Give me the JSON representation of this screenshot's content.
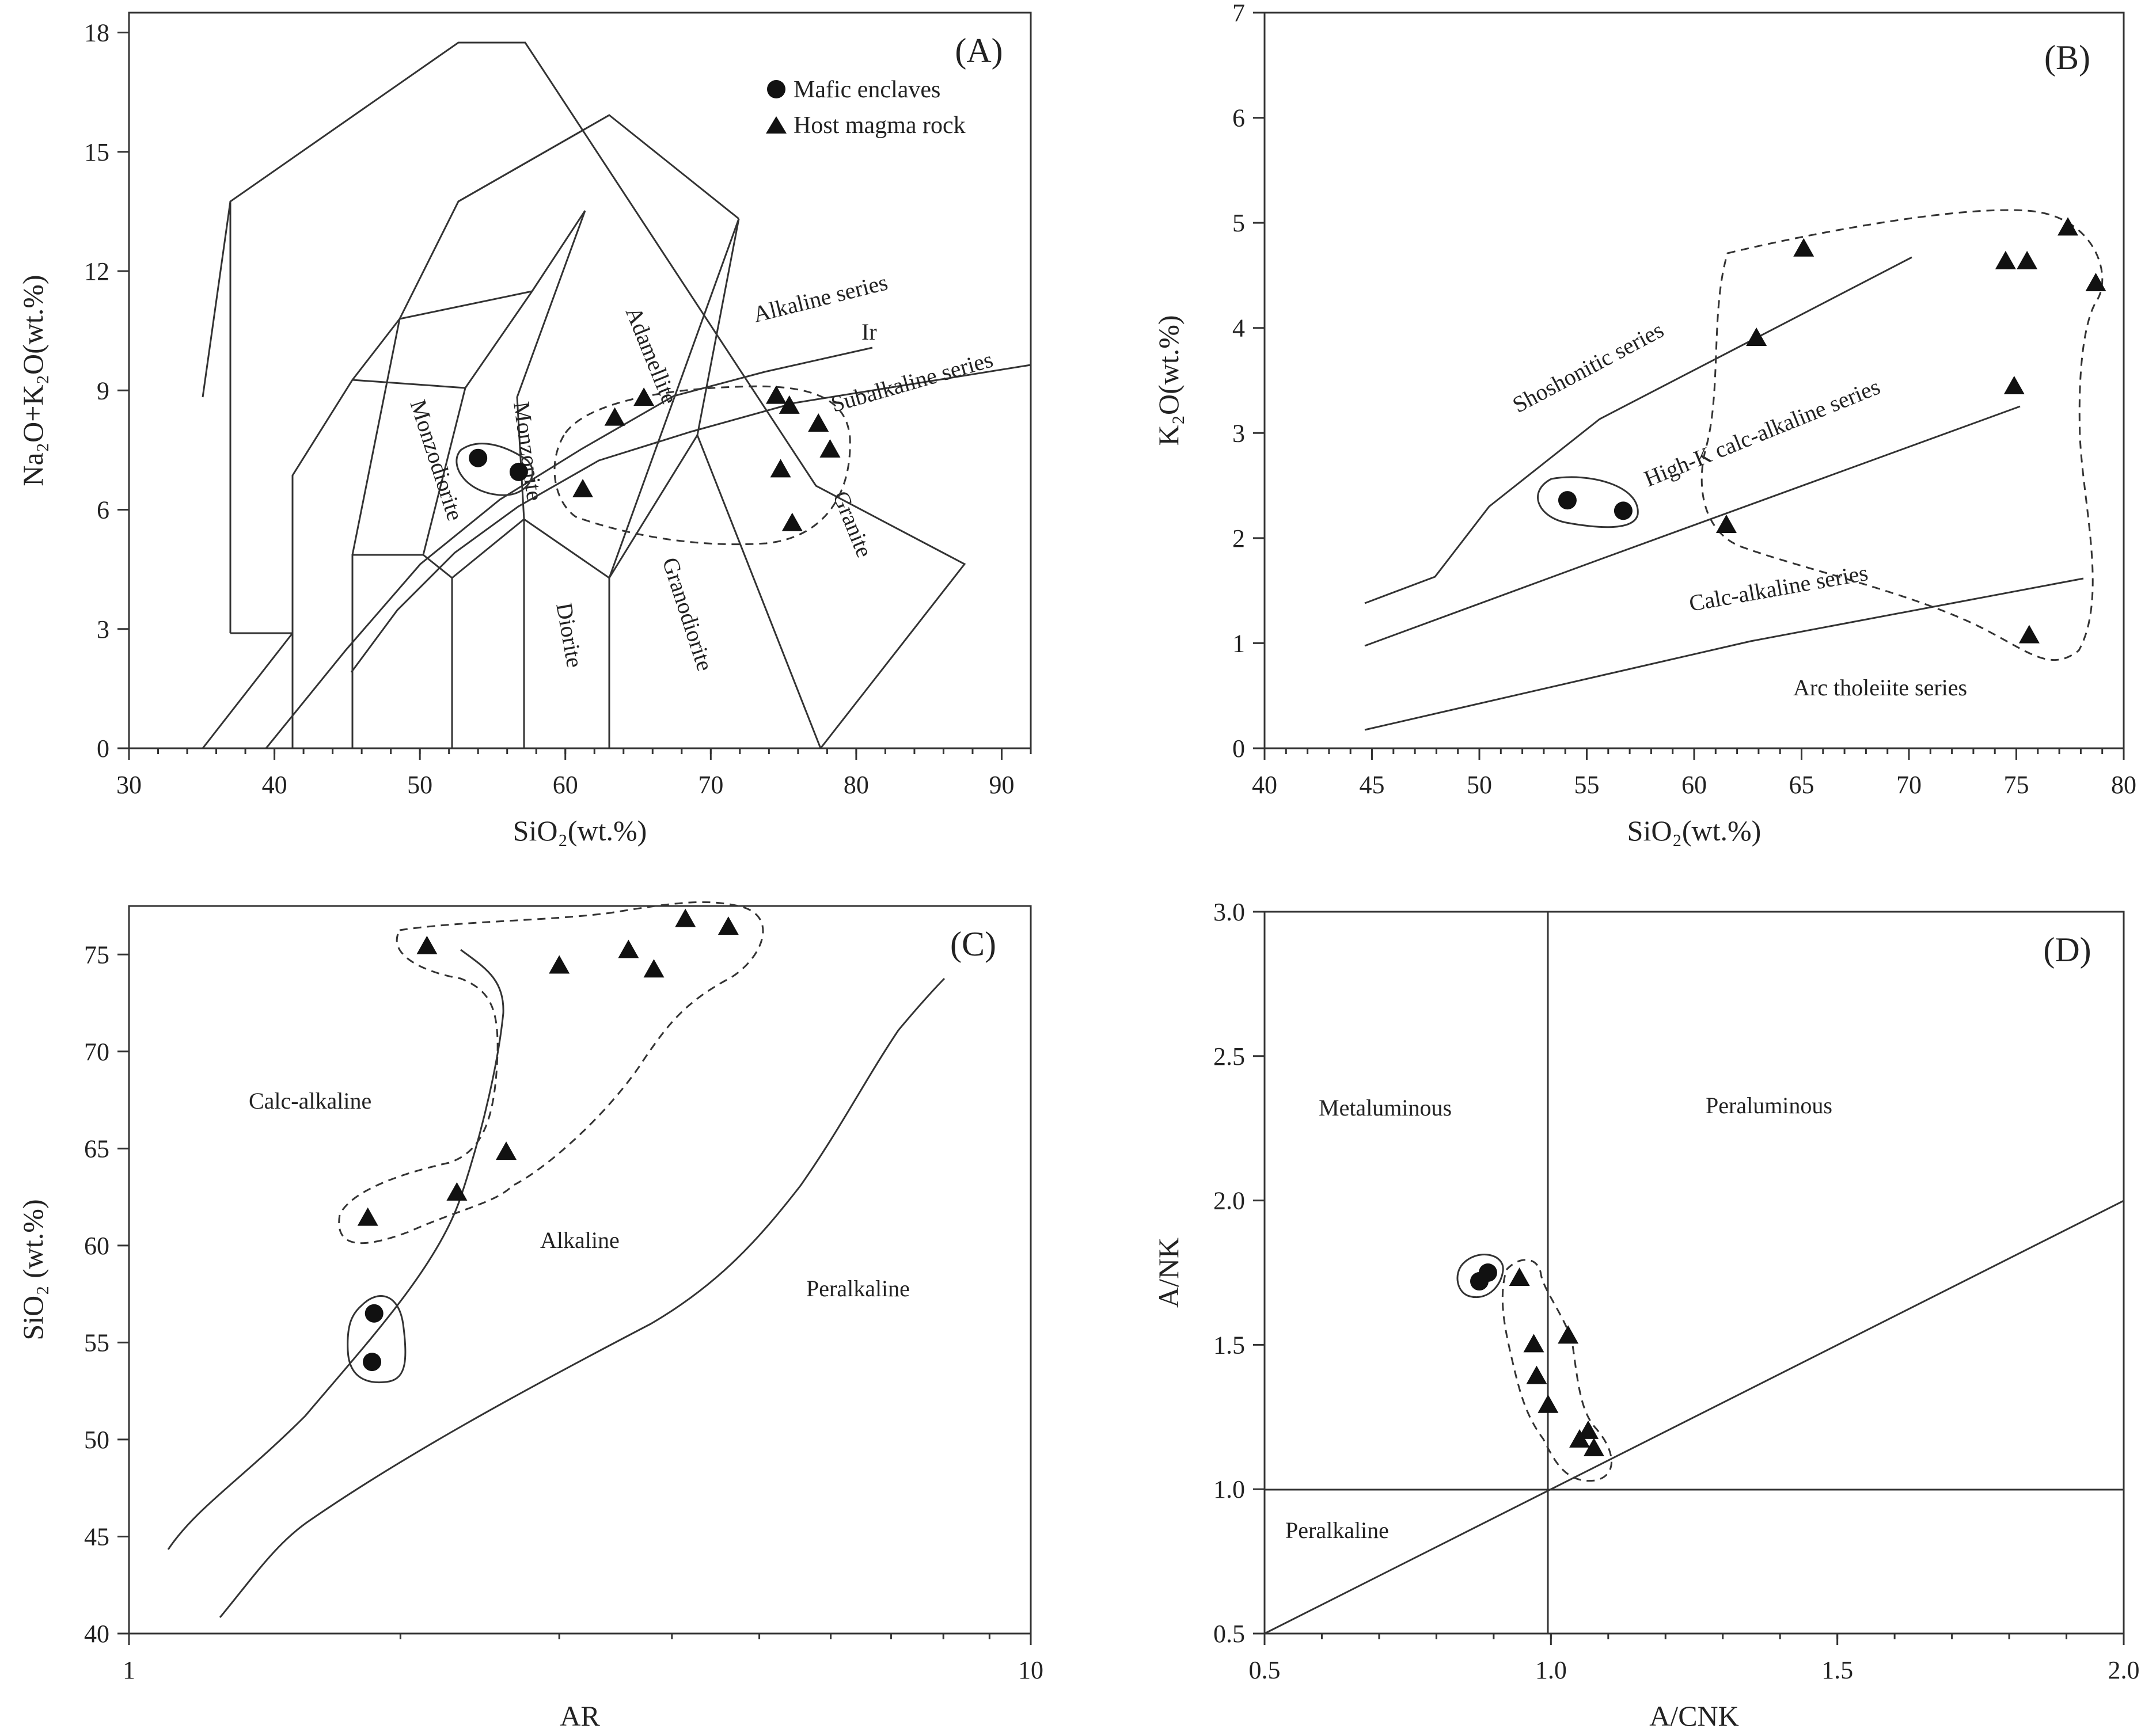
{
  "chart_data": [
    {
      "id": "A",
      "type": "scatter",
      "title": "(A)",
      "xlabel": "SiO₂(wt.%)",
      "ylabel": "Na₂O+K₂O(wt.%)",
      "xlim": [
        30,
        92
      ],
      "ylim": [
        0,
        18.5
      ],
      "xticks": [
        30,
        40,
        50,
        60,
        70,
        80,
        90
      ],
      "yticks": [
        0,
        3,
        6,
        9,
        12,
        15,
        18
      ],
      "legend": {
        "position": "top-right",
        "entries": [
          {
            "label": "Mafic enclaves",
            "marker": "circle"
          },
          {
            "label": "Host magma rock",
            "marker": "triangle"
          }
        ]
      },
      "series": [
        {
          "name": "Mafic enclaves",
          "marker": "circle",
          "points": [
            [
              54.0,
              7.3
            ],
            [
              56.8,
              6.95
            ]
          ]
        },
        {
          "name": "Host magma rock",
          "marker": "triangle",
          "points": [
            [
              61.2,
              6.5
            ],
            [
              63.4,
              8.3
            ],
            [
              65.4,
              8.8
            ],
            [
              74.5,
              8.85
            ],
            [
              75.4,
              8.6
            ],
            [
              77.4,
              8.15
            ],
            [
              78.2,
              7.5
            ],
            [
              74.8,
              7.0
            ],
            [
              75.6,
              5.65
            ]
          ]
        }
      ],
      "region_labels": [
        "Monzonite",
        "Monzodiorite",
        "Adamellite",
        "Diorite",
        "Granodiorite",
        "Granite",
        "Alkaline series",
        "Subalkaline series",
        "Ir"
      ]
    },
    {
      "id": "B",
      "type": "scatter",
      "title": "(B)",
      "xlabel": "SiO₂(wt.%)",
      "ylabel": "K₂O(wt.%)",
      "xlim": [
        40,
        80
      ],
      "ylim": [
        0,
        7
      ],
      "xticks": [
        40,
        45,
        50,
        55,
        60,
        65,
        70,
        75,
        80
      ],
      "yticks": [
        0,
        1,
        2,
        3,
        4,
        5,
        6,
        7
      ],
      "series": [
        {
          "name": "Mafic enclaves",
          "marker": "circle",
          "points": [
            [
              54.1,
              2.36
            ],
            [
              56.7,
              2.26
            ]
          ]
        },
        {
          "name": "Host magma rock",
          "marker": "triangle",
          "points": [
            [
              61.5,
              2.12
            ],
            [
              62.9,
              3.9
            ],
            [
              65.1,
              4.75
            ],
            [
              74.5,
              4.63
            ],
            [
              75.5,
              4.63
            ],
            [
              77.4,
              4.95
            ],
            [
              78.7,
              4.42
            ],
            [
              74.9,
              3.44
            ],
            [
              75.6,
              1.07
            ]
          ]
        }
      ],
      "region_labels": [
        "Shoshonitic series",
        "High-K calc-alkaline series",
        "Calc-alkaline series",
        "Arc tholeiite series"
      ]
    },
    {
      "id": "C",
      "type": "scatter",
      "title": "(C)",
      "xlabel": "AR",
      "ylabel": "SiO₂ (wt.%)",
      "xscale": "log",
      "xlim": [
        1,
        10
      ],
      "ylim": [
        40,
        77.5
      ],
      "xticks": [
        1,
        10
      ],
      "yticks": [
        40,
        45,
        50,
        55,
        60,
        65,
        70,
        75
      ],
      "series": [
        {
          "name": "Mafic enclaves",
          "marker": "circle",
          "points": [
            [
              1.87,
              56.5
            ],
            [
              1.86,
              54.0
            ]
          ]
        },
        {
          "name": "Host magma rock",
          "marker": "triangle",
          "points": [
            [
              1.84,
              61.4
            ],
            [
              2.31,
              62.7
            ],
            [
              2.62,
              64.8
            ],
            [
              2.14,
              75.4
            ],
            [
              3.0,
              74.4
            ],
            [
              3.58,
              75.2
            ],
            [
              3.82,
              74.2
            ],
            [
              4.14,
              76.8
            ],
            [
              4.62,
              76.4
            ]
          ]
        }
      ],
      "region_labels": [
        "Calc-alkaline",
        "Alkaline",
        "Peralkaline"
      ]
    },
    {
      "id": "D",
      "type": "scatter",
      "title": "(D)",
      "xlabel": "A/CNK",
      "ylabel": "A/NK",
      "xlim": [
        0.5,
        2.0
      ],
      "ylim": [
        0.5,
        3.0
      ],
      "xticks": [
        0.5,
        1.0,
        1.5,
        2.0
      ],
      "xticklabels": [
        "0.5",
        "1.0",
        "1.5",
        "2.0"
      ],
      "yticks": [
        0.5,
        1.0,
        1.5,
        2.0,
        2.5,
        3.0
      ],
      "yticklabels": [
        "0.5",
        "1.0",
        "1.5",
        "2.0",
        "2.5",
        "3.0"
      ],
      "series": [
        {
          "name": "Mafic enclaves",
          "marker": "circle",
          "points": [
            [
              0.875,
              1.72
            ],
            [
              0.89,
              1.75
            ]
          ]
        },
        {
          "name": "Host magma rock",
          "marker": "triangle",
          "points": [
            [
              0.945,
              1.73
            ],
            [
              0.97,
              1.5
            ],
            [
              0.975,
              1.39
            ],
            [
              0.995,
              1.29
            ],
            [
              1.03,
              1.53
            ],
            [
              1.05,
              1.17
            ],
            [
              1.065,
              1.2
            ],
            [
              1.075,
              1.14
            ]
          ]
        }
      ],
      "region_labels": [
        "Metaluminous",
        "Peraluminous",
        "Peralkaline"
      ]
    }
  ]
}
